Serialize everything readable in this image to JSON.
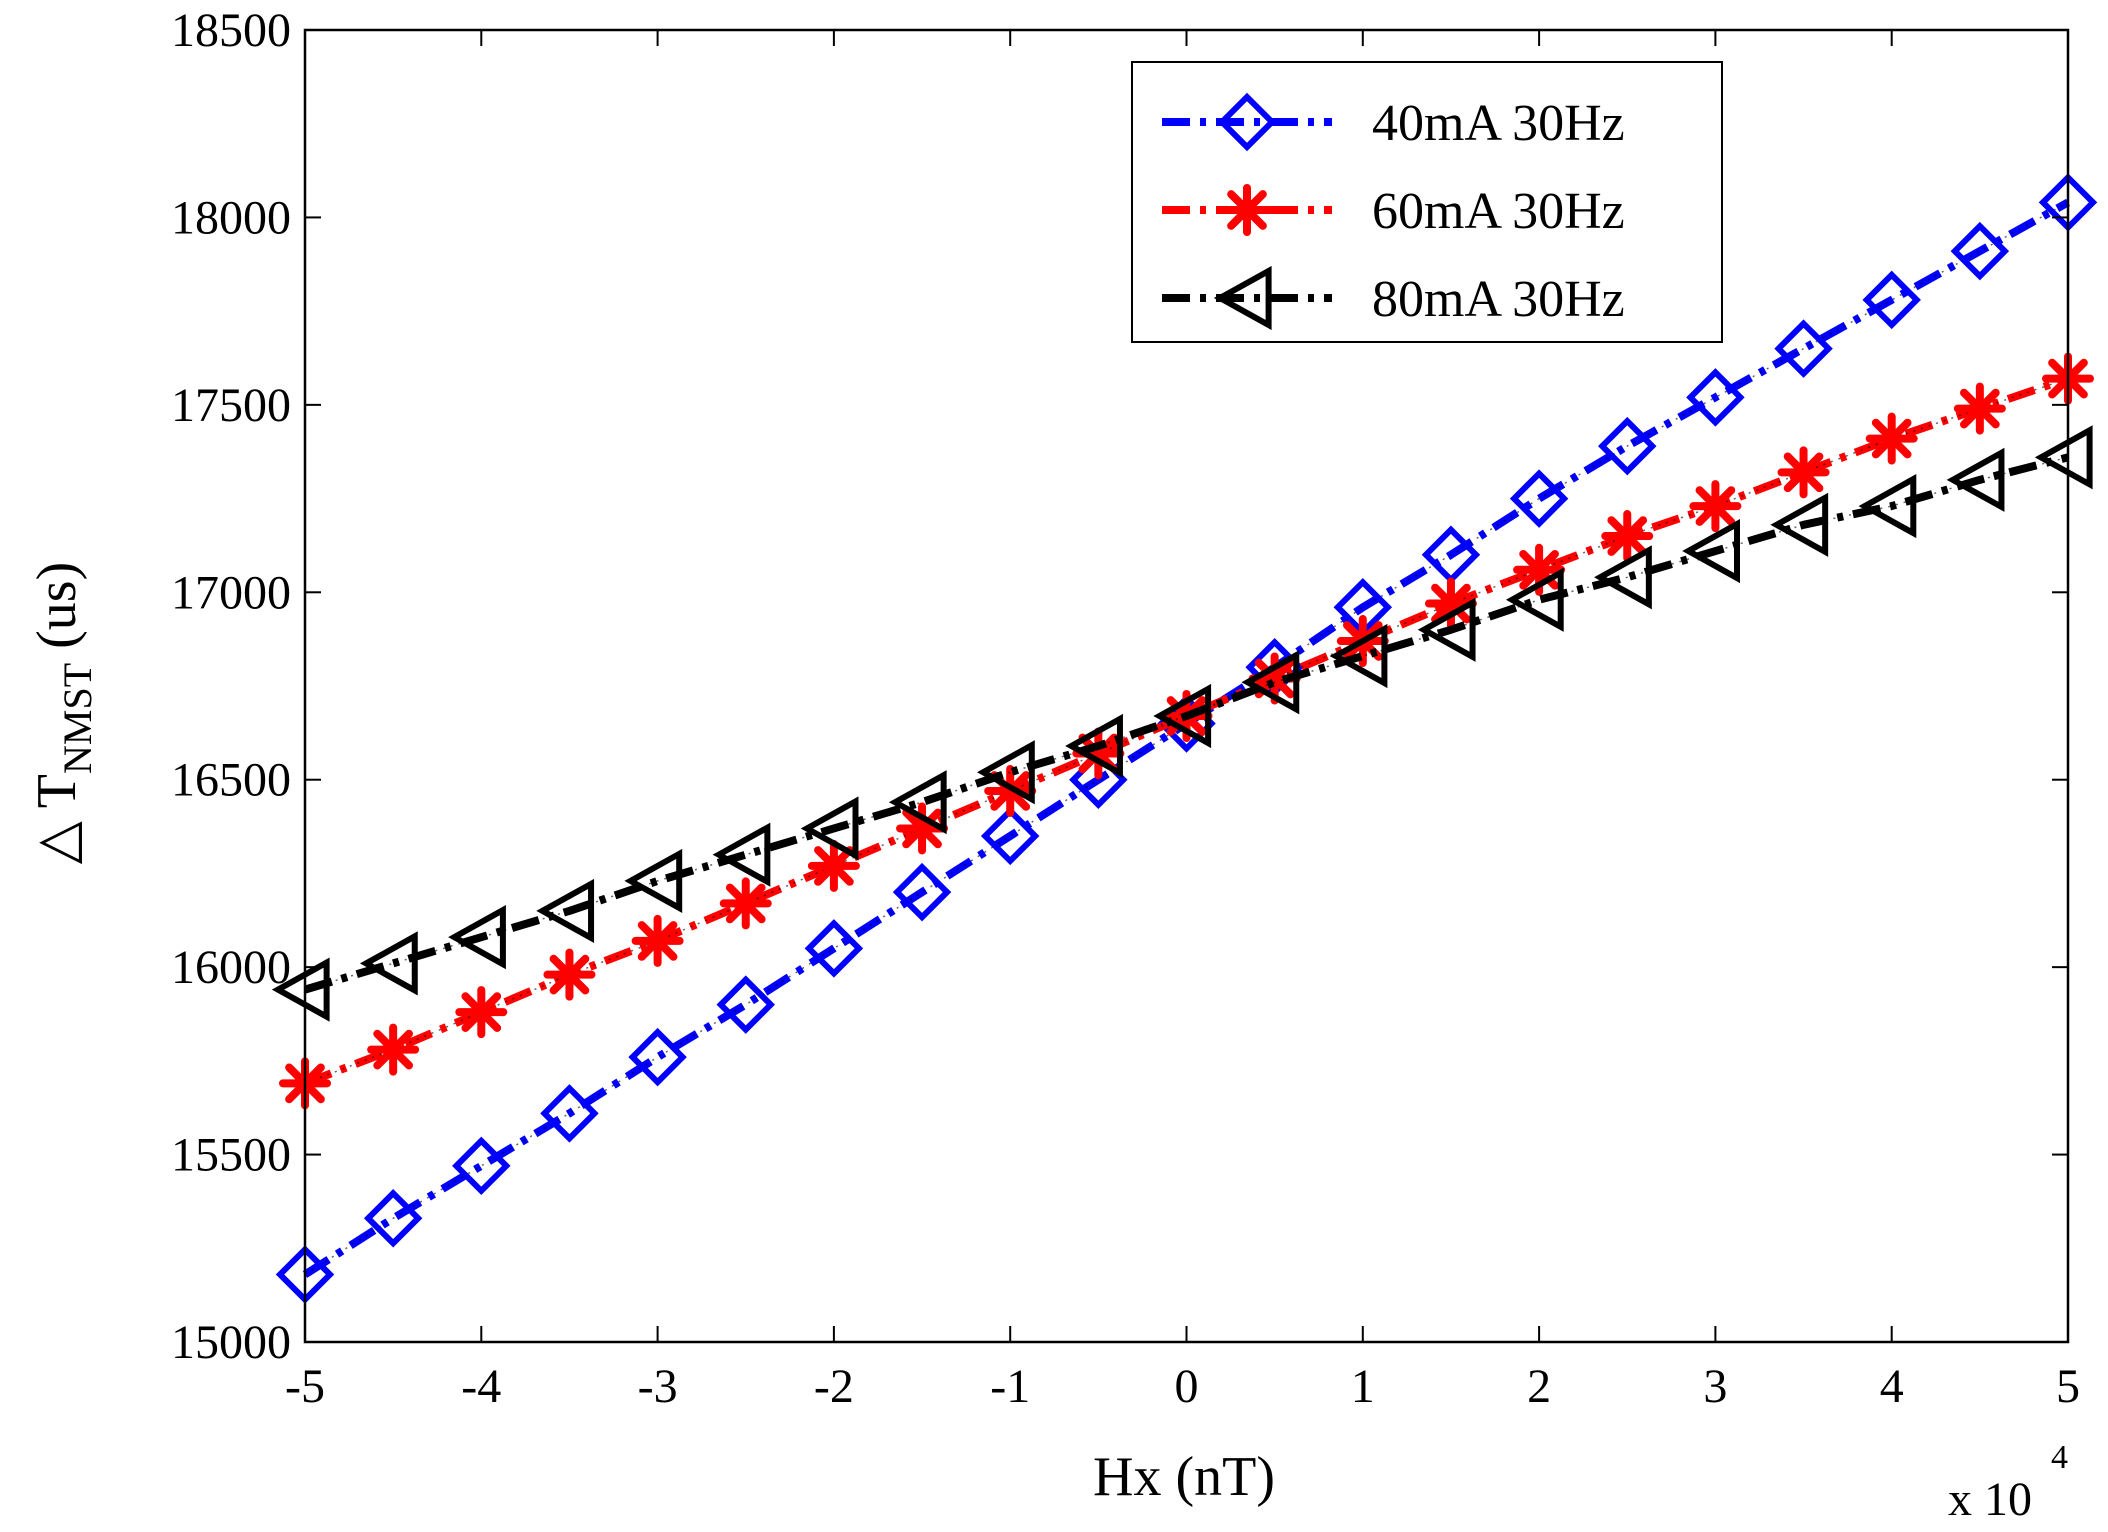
{
  "chart_data": {
    "type": "line",
    "title": "",
    "xlabel": "Hx (nT)",
    "ylabel": "△ T",
    "ylabel_subscript": "NMST",
    "ylabel_unit": " (us)",
    "x_exponent_label": "x 10",
    "x_exponent": "4",
    "xlim": [
      -5,
      5
    ],
    "ylim": [
      15000,
      18500
    ],
    "x_ticks": [
      -5,
      -4,
      -3,
      -2,
      -1,
      0,
      1,
      2,
      3,
      4,
      5
    ],
    "x_tick_labels": [
      "-5",
      "-4",
      "-3",
      "-2",
      "-1",
      "0",
      "1",
      "2",
      "3",
      "4",
      "5"
    ],
    "y_ticks": [
      15000,
      15500,
      16000,
      16500,
      17000,
      17500,
      18000,
      18500
    ],
    "y_tick_labels": [
      "15000",
      "15500",
      "16000",
      "16500",
      "17000",
      "17500",
      "18000",
      "18500"
    ],
    "grid": false,
    "legend_position": "top-right",
    "x": [
      -5,
      -4.5,
      -4,
      -3.5,
      -3,
      -2.5,
      -2,
      -1.5,
      -1,
      -0.5,
      0,
      0.5,
      1,
      1.5,
      2,
      2.5,
      3,
      3.5,
      4,
      4.5,
      5
    ],
    "series": [
      {
        "name": "40mA 30Hz",
        "color": "#0000ff",
        "marker": "diamond",
        "values": [
          15180,
          15330,
          15470,
          15610,
          15760,
          15900,
          16050,
          16200,
          16350,
          16500,
          16650,
          16800,
          16960,
          17100,
          17250,
          17390,
          17520,
          17650,
          17780,
          17910,
          18040
        ]
      },
      {
        "name": "60mA 30Hz",
        "color": "#ff0000",
        "marker": "asterisk",
        "values": [
          15690,
          15780,
          15880,
          15980,
          16070,
          16170,
          16270,
          16370,
          16470,
          16570,
          16670,
          16770,
          16870,
          16970,
          17060,
          17150,
          17230,
          17320,
          17410,
          17490,
          17570
        ]
      },
      {
        "name": "80mA 30Hz",
        "color": "#000000",
        "marker": "triangle-left",
        "values": [
          15940,
          16010,
          16080,
          16150,
          16230,
          16300,
          16370,
          16440,
          16520,
          16590,
          16670,
          16760,
          16830,
          16900,
          16980,
          17040,
          17110,
          17180,
          17230,
          17300,
          17360
        ]
      }
    ]
  }
}
